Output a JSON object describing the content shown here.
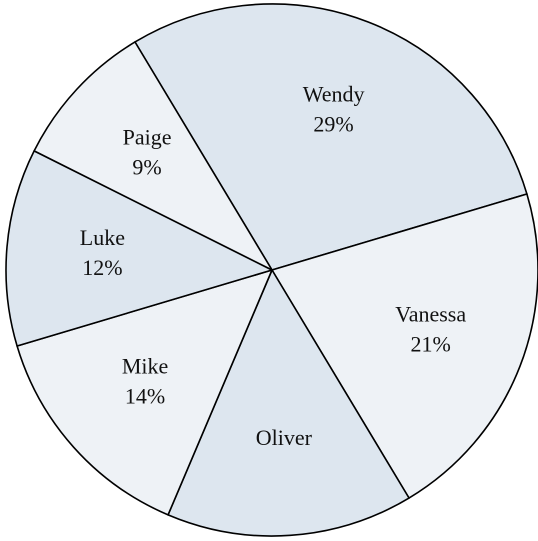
{
  "chart_data": {
    "type": "pie",
    "title": "",
    "slices": [
      {
        "label": "Wendy",
        "value": 29,
        "value_label": "29%",
        "color": "#dde6ef"
      },
      {
        "label": "Vanessa",
        "value": 21,
        "value_label": "21%",
        "color": "#eef2f6"
      },
      {
        "label": "Oliver",
        "value": 15,
        "value_label": "",
        "color": "#dde6ef"
      },
      {
        "label": "Mike",
        "value": 14,
        "value_label": "14%",
        "color": "#eef2f6"
      },
      {
        "label": "Luke",
        "value": 12,
        "value_label": "12%",
        "color": "#dde6ef"
      },
      {
        "label": "Paige",
        "value": 9,
        "value_label": "9%",
        "color": "#eef2f6"
      }
    ],
    "start_angle_deg": -121,
    "direction": "clockwise",
    "legend": "none"
  }
}
